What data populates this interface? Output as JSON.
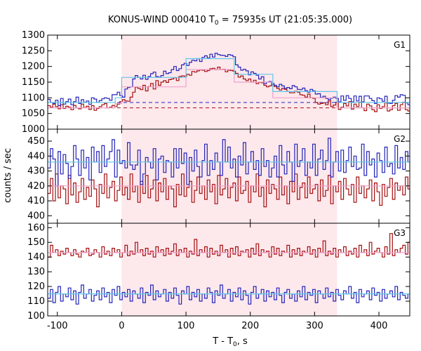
{
  "chart_data": {
    "type": "line",
    "title_main": "KONUS-WIND 000410 T",
    "title_sub": "0",
    "title_rest": " = 75935s UT (21:05:35.000)",
    "xlabel_main": "T - T",
    "xlabel_sub": "0",
    "xlabel_rest": ", s",
    "ylabel": "counts / sec",
    "xlim": [
      -115,
      448
    ],
    "xticks": [
      -100,
      0,
      100,
      200,
      300,
      400
    ],
    "grid": false,
    "legend": "none",
    "shaded_interval": [
      0,
      335
    ],
    "colors": {
      "red": "#a50f0f",
      "blue": "#2424b8",
      "light_blue": "#5fc7e8",
      "pink": "#f0a0c8",
      "shade": "#fde8ec"
    },
    "bin_width_s": 4,
    "x_start": -115,
    "panels": [
      {
        "label": "G1",
        "ylim": [
          1000,
          1300
        ],
        "yticks": [
          1000,
          1050,
          1100,
          1150,
          1200,
          1250,
          1300
        ],
        "background_blue": 1085,
        "background_red": 1068,
        "fit_blue": {
          "x": [
            -115,
            -10,
            -10,
            0,
            0,
            100,
            100,
            175,
            175,
            235,
            235,
            335,
            335,
            448
          ],
          "y": [
            1085,
            1085,
            1100,
            1100,
            1165,
            1165,
            1225,
            1225,
            1175,
            1175,
            1120,
            1120,
            1085,
            1085
          ]
        },
        "fit_pink": {
          "x": [
            -115,
            -10,
            -10,
            0,
            0,
            100,
            100,
            175,
            175,
            235,
            235,
            335,
            335,
            448
          ],
          "y": [
            1068,
            1068,
            1082,
            1082,
            1135,
            1135,
            1190,
            1190,
            1150,
            1150,
            1100,
            1100,
            1068,
            1068
          ]
        },
        "blue": [
          1095,
          1085,
          1082,
          1092,
          1075,
          1098,
          1080,
          1088,
          1096,
          1078,
          1088,
          1102,
          1082,
          1094,
          1086,
          1090,
          1079,
          1100,
          1096,
          1085,
          1091,
          1097,
          1100,
          1098,
          1092,
          1110,
          1110,
          1118,
          1107,
          1102,
          1128,
          1133,
          1135,
          1160,
          1171,
          1165,
          1160,
          1172,
          1159,
          1168,
          1177,
          1182,
          1168,
          1166,
          1171,
          1185,
          1177,
          1180,
          1190,
          1200,
          1187,
          1193,
          1205,
          1210,
          1203,
          1213,
          1220,
          1218,
          1225,
          1216,
          1229,
          1234,
          1227,
          1239,
          1230,
          1242,
          1238,
          1236,
          1235,
          1232,
          1238,
          1236,
          1231,
          1205,
          1198,
          1188,
          1191,
          1186,
          1173,
          1183,
          1178,
          1172,
          1160,
          1167,
          1145,
          1150,
          1152,
          1146,
          1140,
          1135,
          1143,
          1138,
          1130,
          1133,
          1129,
          1139,
          1135,
          1127,
          1126,
          1131,
          1123,
          1118,
          1127,
          1122,
          1112,
          1113,
          1101,
          1105,
          1098,
          1094,
          1099,
          1102,
          1098,
          1087,
          1106,
          1092,
          1107,
          1098,
          1087,
          1106,
          1090,
          1105,
          1087,
          1106,
          1106,
          1098,
          1091,
          1082,
          1100,
          1097,
          1089,
          1105,
          1083,
          1082,
          1092,
          1107,
          1102,
          1110,
          1108,
          1084,
          1078
        ],
        "red": [
          1075,
          1070,
          1080,
          1072,
          1065,
          1078,
          1066,
          1073,
          1070,
          1062,
          1076,
          1068,
          1065,
          1080,
          1069,
          1073,
          1063,
          1075,
          1060,
          1066,
          1072,
          1078,
          1082,
          1068,
          1070,
          1076,
          1072,
          1080,
          1088,
          1094,
          1090,
          1089,
          1102,
          1118,
          1134,
          1130,
          1126,
          1140,
          1122,
          1136,
          1146,
          1128,
          1155,
          1140,
          1150,
          1155,
          1149,
          1158,
          1160,
          1164,
          1155,
          1168,
          1170,
          1169,
          1175,
          1172,
          1184,
          1182,
          1186,
          1189,
          1188,
          1184,
          1187,
          1193,
          1194,
          1190,
          1198,
          1190,
          1191,
          1183,
          1188,
          1187,
          1185,
          1178,
          1166,
          1170,
          1160,
          1155,
          1160,
          1150,
          1156,
          1145,
          1149,
          1148,
          1140,
          1135,
          1138,
          1142,
          1136,
          1130,
          1125,
          1130,
          1127,
          1120,
          1116,
          1116,
          1121,
          1118,
          1110,
          1108,
          1102,
          1112,
          1100,
          1098,
          1085,
          1080,
          1082,
          1084,
          1078,
          1090,
          1072,
          1077,
          1086,
          1063,
          1070,
          1082,
          1074,
          1088,
          1064,
          1080,
          1072,
          1086,
          1068,
          1059,
          1080,
          1074,
          1062,
          1056,
          1078,
          1066,
          1072,
          1084,
          1058,
          1062,
          1075,
          1082,
          1060,
          1078,
          1086,
          1062,
          1058
        ]
      },
      {
        "label": "G2",
        "ylim": [
          395,
          458
        ],
        "yticks": [
          400,
          410,
          420,
          430,
          440,
          450
        ],
        "fit_blue": {
          "x": [
            -115,
            448
          ],
          "y": [
            436,
            436
          ]
        },
        "fit_pink": {
          "x": [
            -115,
            448
          ],
          "y": [
            420,
            420
          ]
        },
        "blue": [
          432,
          445,
          438,
          420,
          443,
          428,
          441,
          435,
          425,
          433,
          447,
          438,
          427,
          444,
          432,
          439,
          424,
          446,
          436,
          443,
          429,
          447,
          433,
          438,
          443,
          451,
          426,
          444,
          435,
          437,
          432,
          449,
          434,
          431,
          434,
          444,
          421,
          428,
          439,
          436,
          432,
          445,
          424,
          438,
          440,
          429,
          437,
          436,
          426,
          445,
          432,
          445,
          435,
          442,
          421,
          439,
          430,
          444,
          433,
          426,
          437,
          448,
          427,
          437,
          431,
          442,
          436,
          427,
          451,
          436,
          446,
          432,
          438,
          426,
          440,
          434,
          449,
          428,
          436,
          443,
          431,
          437,
          427,
          445,
          433,
          437,
          426,
          432,
          440,
          426,
          447,
          434,
          428,
          443,
          436,
          423,
          448,
          433,
          437,
          445,
          427,
          436,
          432,
          448,
          427,
          438,
          444,
          431,
          437,
          452,
          426,
          436,
          443,
          430,
          444,
          429,
          437,
          446,
          433,
          440,
          431,
          432,
          448,
          427,
          443,
          434,
          438,
          426,
          442,
          437,
          429,
          446,
          433,
          435,
          428,
          447,
          432,
          439,
          431,
          443,
          436
        ],
        "red": [
          415,
          425,
          410,
          428,
          412,
          420,
          418,
          408,
          427,
          414,
          422,
          409,
          416,
          425,
          411,
          419,
          413,
          424,
          418,
          406,
          421,
          415,
          428,
          412,
          419,
          423,
          410,
          417,
          426,
          414,
          419,
          411,
          428,
          416,
          420,
          409,
          423,
          415,
          427,
          412,
          418,
          424,
          410,
          422,
          416,
          425,
          411,
          420,
          418,
          406,
          421,
          414,
          428,
          413,
          419,
          423,
          409,
          417,
          426,
          415,
          420,
          411,
          424,
          416,
          421,
          408,
          427,
          414,
          418,
          425,
          412,
          419,
          422,
          410,
          426,
          415,
          417,
          423,
          409,
          420,
          416,
          428,
          413,
          419,
          406,
          424,
          415,
          421,
          418,
          411,
          426,
          414,
          420,
          408,
          423,
          416,
          428,
          411,
          419,
          422,
          412,
          426,
          415,
          418,
          421,
          410,
          424,
          413,
          417,
          427,
          408,
          420,
          416,
          423,
          411,
          425,
          418,
          414,
          421,
          409,
          426,
          415,
          420,
          412,
          418,
          424,
          410,
          422,
          416,
          407,
          421,
          413,
          419,
          425,
          411,
          422,
          417,
          420,
          414,
          426,
          418
        ]
      },
      {
        "label": "G3",
        "ylim": [
          100,
          163
        ],
        "yticks": [
          100,
          110,
          120,
          130,
          140,
          150,
          160
        ],
        "fit_blue": {
          "x": [
            -115,
            448
          ],
          "y": [
            115,
            115
          ]
        },
        "fit_pink": {
          "x": [
            -115,
            448
          ],
          "y": [
            143,
            143
          ]
        },
        "blue": [
          112,
          118,
          109,
          116,
          120,
          110,
          115,
          113,
          119,
          111,
          117,
          108,
          116,
          121,
          112,
          115,
          118,
          110,
          114,
          117,
          111,
          119,
          113,
          116,
          109,
          118,
          114,
          120,
          111,
          116,
          113,
          118,
          110,
          117,
          115,
          112,
          119,
          109,
          116,
          114,
          121,
          111,
          117,
          113,
          115,
          118,
          110,
          116,
          112,
          119,
          114,
          108,
          117,
          115,
          120,
          111,
          116,
          113,
          118,
          110,
          115,
          112,
          119,
          116,
          109,
          117,
          114,
          121,
          112,
          115,
          118,
          110,
          116,
          113,
          119,
          111,
          117,
          114,
          108,
          116,
          120,
          112,
          115,
          118,
          110,
          117,
          113,
          116,
          111,
          119,
          114,
          109,
          116,
          118,
          112,
          115,
          110,
          117,
          113,
          120,
          111,
          116,
          114,
          118,
          109,
          117,
          115,
          112,
          119,
          113,
          116,
          110,
          118,
          114,
          111,
          117,
          115,
          120,
          112,
          116,
          109,
          118,
          113,
          115,
          117,
          111,
          119,
          114,
          116,
          110,
          118,
          112,
          115,
          117,
          113,
          120,
          111,
          116,
          114,
          112,
          115
        ],
        "red": [
          140,
          148,
          143,
          145,
          141,
          144,
          142,
          146,
          143,
          141,
          145,
          142,
          140,
          144,
          143,
          146,
          141,
          142,
          145,
          143,
          140,
          147,
          142,
          144,
          141,
          146,
          143,
          145,
          140,
          143,
          148,
          141,
          144,
          142,
          150,
          143,
          145,
          141,
          146,
          142,
          144,
          140,
          147,
          143,
          145,
          141,
          146,
          142,
          144,
          149,
          141,
          145,
          143,
          146,
          140,
          144,
          142,
          152,
          141,
          145,
          143,
          147,
          140,
          146,
          142,
          144,
          141,
          148,
          143,
          145,
          140,
          146,
          142,
          147,
          141,
          144,
          143,
          145,
          140,
          146,
          142,
          149,
          141,
          145,
          143,
          144,
          140,
          147,
          142,
          146,
          141,
          144,
          143,
          148,
          140,
          145,
          142,
          146,
          141,
          144,
          143,
          147,
          142,
          145,
          140,
          146,
          143,
          151,
          141,
          144,
          142,
          146,
          140,
          145,
          143,
          147,
          141,
          144,
          142,
          146,
          140,
          148,
          143,
          145,
          141,
          150,
          142,
          144,
          146,
          143,
          140,
          147,
          142,
          156,
          141,
          145,
          143,
          146,
          148,
          142,
          150
        ]
      }
    ]
  }
}
